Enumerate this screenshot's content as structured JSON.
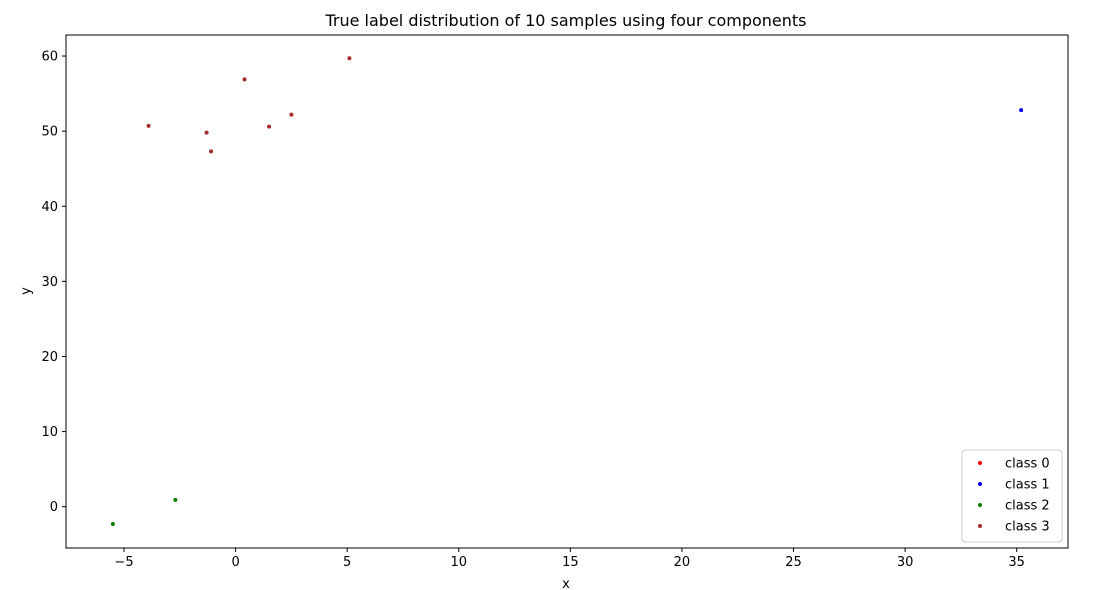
{
  "chart_data": {
    "type": "scatter",
    "title": "True label distribution of 10 samples using four components",
    "xlabel": "x",
    "ylabel": "y",
    "xlim": [
      -7.6,
      37.3
    ],
    "ylim": [
      -5.5,
      62.8
    ],
    "xticks": [
      -5,
      0,
      5,
      10,
      15,
      20,
      25,
      30,
      35
    ],
    "yticks": [
      0,
      10,
      20,
      30,
      40,
      50,
      60
    ],
    "grid": false,
    "legend_position": "lower-right",
    "series": [
      {
        "name": "class 0",
        "color": "#ff0000",
        "points": []
      },
      {
        "name": "class 1",
        "color": "#0000ff",
        "points": [
          [
            35.2,
            52.8
          ]
        ]
      },
      {
        "name": "class 2",
        "color": "#008000",
        "points": [
          [
            -5.5,
            -2.3
          ],
          [
            -2.7,
            0.9
          ]
        ]
      },
      {
        "name": "class 3",
        "color": "#a52a2a",
        "points": [
          [
            -3.9,
            50.7
          ],
          [
            -1.3,
            49.8
          ],
          [
            -1.1,
            47.3
          ],
          [
            0.4,
            56.9
          ],
          [
            1.5,
            50.6
          ],
          [
            2.5,
            52.2
          ],
          [
            5.1,
            59.7
          ]
        ]
      }
    ]
  }
}
